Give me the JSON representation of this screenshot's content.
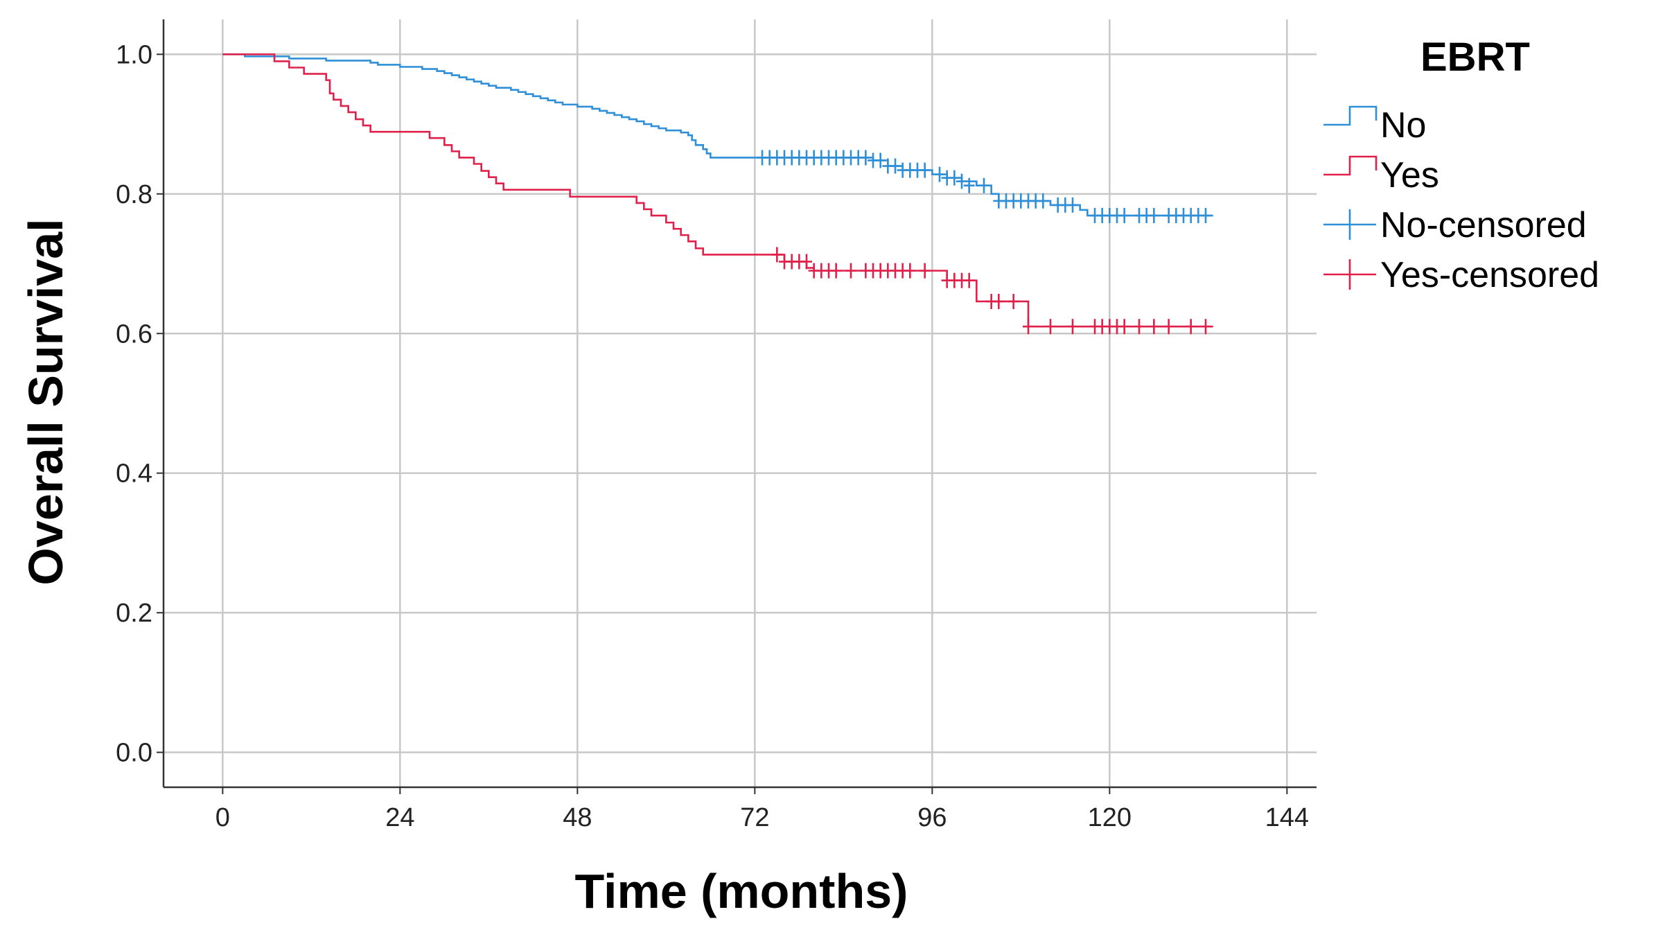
{
  "chart_data": {
    "type": "line",
    "subtype": "kaplan-meier",
    "xlabel": "Time (months)",
    "ylabel": "Overall Survival",
    "xlim": [
      -8,
      148
    ],
    "ylim": [
      -0.05,
      1.05
    ],
    "xticks": [
      0,
      24,
      48,
      72,
      96,
      120,
      144
    ],
    "xtick_labels": [
      "0",
      "24",
      "48",
      "72",
      "96",
      "120",
      "144"
    ],
    "yticks": [
      0.0,
      0.2,
      0.4,
      0.6,
      0.8,
      1.0
    ],
    "ytick_labels": [
      "0.0",
      "0.2",
      "0.4",
      "0.6",
      "0.8",
      "1.0"
    ],
    "grid": true,
    "legend": {
      "title": "EBRT",
      "placement": "top-right-outside",
      "entries": [
        "No",
        "Yes",
        "No-censored",
        "Yes-censored"
      ]
    },
    "series": [
      {
        "name": "No",
        "color": "#2e8fd8",
        "steps": [
          [
            0,
            1.0
          ],
          [
            3,
            0.997
          ],
          [
            9,
            0.994
          ],
          [
            14,
            0.991
          ],
          [
            20,
            0.988
          ],
          [
            21,
            0.985
          ],
          [
            24,
            0.982
          ],
          [
            27,
            0.979
          ],
          [
            29,
            0.976
          ],
          [
            30,
            0.973
          ],
          [
            31,
            0.97
          ],
          [
            32,
            0.967
          ],
          [
            33,
            0.964
          ],
          [
            34,
            0.961
          ],
          [
            35,
            0.958
          ],
          [
            36,
            0.955
          ],
          [
            37,
            0.952
          ],
          [
            39,
            0.949
          ],
          [
            40,
            0.946
          ],
          [
            41,
            0.943
          ],
          [
            42,
            0.94
          ],
          [
            43,
            0.937
          ],
          [
            44,
            0.934
          ],
          [
            45,
            0.931
          ],
          [
            46,
            0.928
          ],
          [
            48,
            0.925
          ],
          [
            50,
            0.922
          ],
          [
            51,
            0.919
          ],
          [
            52,
            0.916
          ],
          [
            53,
            0.913
          ],
          [
            54,
            0.91
          ],
          [
            55,
            0.907
          ],
          [
            56,
            0.904
          ],
          [
            57,
            0.9
          ],
          [
            58,
            0.897
          ],
          [
            59,
            0.894
          ],
          [
            60,
            0.891
          ],
          [
            62,
            0.888
          ],
          [
            63,
            0.884
          ],
          [
            63.5,
            0.877
          ],
          [
            64,
            0.87
          ],
          [
            65,
            0.864
          ],
          [
            65.5,
            0.858
          ],
          [
            66,
            0.852
          ],
          [
            78,
            0.852
          ],
          [
            88,
            0.848
          ],
          [
            90,
            0.84
          ],
          [
            92,
            0.834
          ],
          [
            96,
            0.828
          ],
          [
            98,
            0.823
          ],
          [
            100,
            0.818
          ],
          [
            102,
            0.812
          ],
          [
            104,
            0.8
          ],
          [
            105,
            0.79
          ],
          [
            112,
            0.784
          ],
          [
            116,
            0.777
          ],
          [
            117,
            0.769
          ],
          [
            134,
            0.769
          ]
        ],
        "censored": [
          [
            73,
            0.852
          ],
          [
            74,
            0.852
          ],
          [
            75,
            0.852
          ],
          [
            76,
            0.852
          ],
          [
            77,
            0.852
          ],
          [
            78,
            0.852
          ],
          [
            79,
            0.852
          ],
          [
            80,
            0.852
          ],
          [
            81,
            0.852
          ],
          [
            82,
            0.852
          ],
          [
            83,
            0.852
          ],
          [
            84,
            0.852
          ],
          [
            85,
            0.852
          ],
          [
            86,
            0.852
          ],
          [
            87,
            0.852
          ],
          [
            88,
            0.848
          ],
          [
            89,
            0.848
          ],
          [
            90,
            0.84
          ],
          [
            91,
            0.84
          ],
          [
            92,
            0.834
          ],
          [
            93,
            0.834
          ],
          [
            94,
            0.834
          ],
          [
            95,
            0.834
          ],
          [
            97,
            0.828
          ],
          [
            98,
            0.823
          ],
          [
            99,
            0.823
          ],
          [
            100,
            0.818
          ],
          [
            101,
            0.812
          ],
          [
            103,
            0.812
          ],
          [
            105,
            0.79
          ],
          [
            106,
            0.79
          ],
          [
            107,
            0.79
          ],
          [
            108,
            0.79
          ],
          [
            109,
            0.79
          ],
          [
            110,
            0.79
          ],
          [
            111,
            0.79
          ],
          [
            113,
            0.784
          ],
          [
            114,
            0.784
          ],
          [
            115,
            0.784
          ],
          [
            118,
            0.769
          ],
          [
            119,
            0.769
          ],
          [
            120,
            0.769
          ],
          [
            121,
            0.769
          ],
          [
            122,
            0.769
          ],
          [
            124,
            0.769
          ],
          [
            125,
            0.769
          ],
          [
            126,
            0.769
          ],
          [
            128,
            0.769
          ],
          [
            129,
            0.769
          ],
          [
            130,
            0.769
          ],
          [
            131,
            0.769
          ],
          [
            132,
            0.769
          ],
          [
            133,
            0.769
          ]
        ]
      },
      {
        "name": "Yes",
        "color": "#e0204a",
        "steps": [
          [
            0,
            1.0
          ],
          [
            7,
            0.99
          ],
          [
            9,
            0.981
          ],
          [
            11,
            0.972
          ],
          [
            14,
            0.963
          ],
          [
            14.5,
            0.944
          ],
          [
            15,
            0.935
          ],
          [
            16,
            0.926
          ],
          [
            17,
            0.917
          ],
          [
            18,
            0.907
          ],
          [
            19,
            0.898
          ],
          [
            20,
            0.889
          ],
          [
            28,
            0.88
          ],
          [
            30,
            0.87
          ],
          [
            31,
            0.861
          ],
          [
            32,
            0.852
          ],
          [
            34,
            0.843
          ],
          [
            35,
            0.833
          ],
          [
            36,
            0.824
          ],
          [
            37,
            0.815
          ],
          [
            38,
            0.806
          ],
          [
            47,
            0.796
          ],
          [
            56,
            0.787
          ],
          [
            57,
            0.778
          ],
          [
            58,
            0.769
          ],
          [
            60,
            0.759
          ],
          [
            61,
            0.75
          ],
          [
            62,
            0.741
          ],
          [
            63,
            0.732
          ],
          [
            64,
            0.722
          ],
          [
            65,
            0.713
          ],
          [
            68,
            0.713
          ],
          [
            76,
            0.703
          ],
          [
            79,
            0.694
          ],
          [
            80,
            0.69
          ],
          [
            98,
            0.676
          ],
          [
            102,
            0.646
          ],
          [
            106,
            0.646
          ],
          [
            109,
            0.61
          ],
          [
            134,
            0.61
          ]
        ],
        "censored": [
          [
            75,
            0.713
          ],
          [
            76,
            0.703
          ],
          [
            77,
            0.703
          ],
          [
            78,
            0.703
          ],
          [
            79,
            0.703
          ],
          [
            80,
            0.69
          ],
          [
            81,
            0.69
          ],
          [
            82,
            0.69
          ],
          [
            83,
            0.69
          ],
          [
            85,
            0.69
          ],
          [
            87,
            0.69
          ],
          [
            88,
            0.69
          ],
          [
            89,
            0.69
          ],
          [
            90,
            0.69
          ],
          [
            91,
            0.69
          ],
          [
            92,
            0.69
          ],
          [
            93,
            0.69
          ],
          [
            95,
            0.69
          ],
          [
            98,
            0.676
          ],
          [
            99,
            0.676
          ],
          [
            100,
            0.676
          ],
          [
            101,
            0.676
          ],
          [
            104,
            0.646
          ],
          [
            105,
            0.646
          ],
          [
            107,
            0.646
          ],
          [
            109,
            0.61
          ],
          [
            112,
            0.61
          ],
          [
            115,
            0.61
          ],
          [
            118,
            0.61
          ],
          [
            119,
            0.61
          ],
          [
            120,
            0.61
          ],
          [
            121,
            0.61
          ],
          [
            122,
            0.61
          ],
          [
            124,
            0.61
          ],
          [
            126,
            0.61
          ],
          [
            128,
            0.61
          ],
          [
            131,
            0.61
          ],
          [
            133,
            0.61
          ]
        ]
      }
    ]
  }
}
